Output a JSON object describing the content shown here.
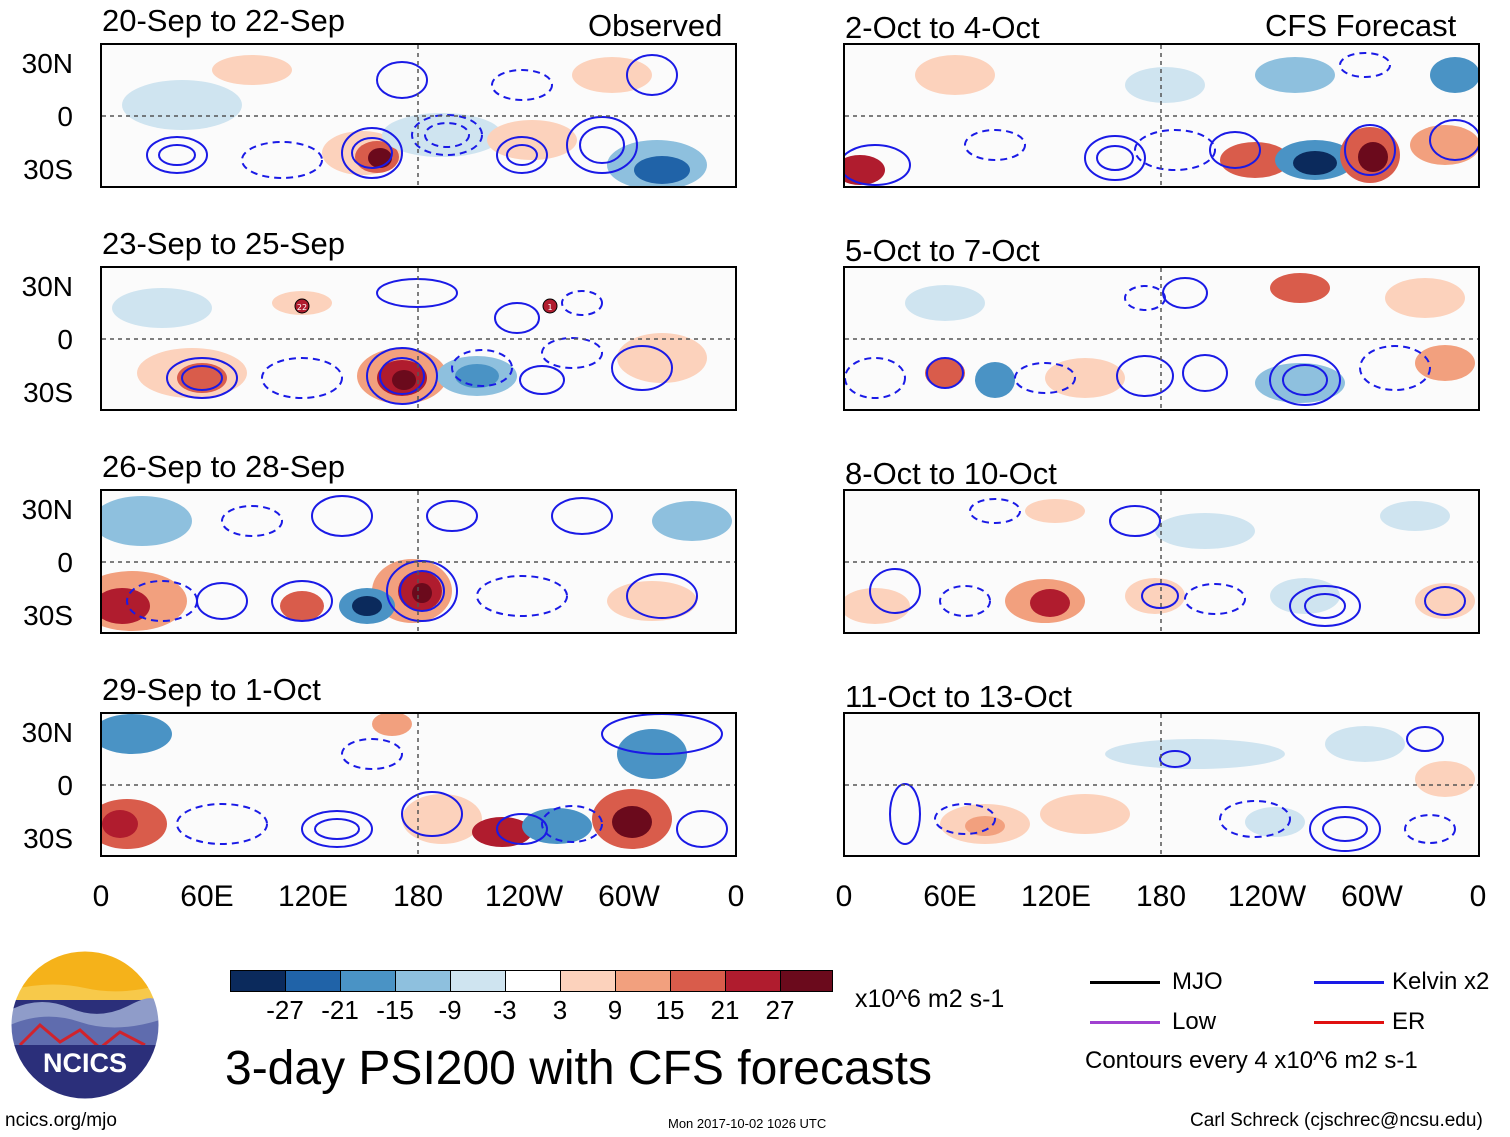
{
  "columns": {
    "left": "Observed",
    "right": "CFS Forecast"
  },
  "panels": {
    "left": [
      "20-Sep to 22-Sep",
      "23-Sep to 25-Sep",
      "26-Sep to 28-Sep",
      "29-Sep to 1-Oct"
    ],
    "right": [
      "2-Oct to 4-Oct",
      "5-Oct to 7-Oct",
      "8-Oct to 10-Oct",
      "11-Oct to 13-Oct"
    ]
  },
  "lat_labels": [
    "30N",
    "0",
    "30S"
  ],
  "lon_labels": [
    "0",
    "60E",
    "120E",
    "180",
    "120W",
    "60W",
    "0"
  ],
  "storm_markers": [
    "22",
    "1"
  ],
  "colorbar": {
    "colors": [
      "#0b2a5c",
      "#2063a8",
      "#4a93c5",
      "#8ec0de",
      "#cfe4f0",
      "#ffffff",
      "#fcd2bc",
      "#f2a07e",
      "#d95c4b",
      "#b01c2e",
      "#6b0a1c"
    ],
    "ticks": [
      "-27",
      "-21",
      "-15",
      "-9",
      "-3",
      "3",
      "9",
      "15",
      "21",
      "27"
    ],
    "units": "x10^6 m2 s-1"
  },
  "title": "3-day PSI200 with CFS forecasts",
  "legend": {
    "items": [
      {
        "label": "MJO",
        "color": "#000000"
      },
      {
        "label": "Kelvin x2",
        "color": "#1a1ae6"
      },
      {
        "label": "Low",
        "color": "#a040d0"
      },
      {
        "label": "ER",
        "color": "#e01010"
      }
    ],
    "contours_note": "Contours every 4 x10^6 m2 s-1"
  },
  "logo": {
    "text": "NCICS"
  },
  "footer": {
    "left": "ncics.org/mjo",
    "center": "Mon 2017-10-02 1026 UTC",
    "right": "Carl Schreck (cjschrec@ncsu.edu)"
  }
}
